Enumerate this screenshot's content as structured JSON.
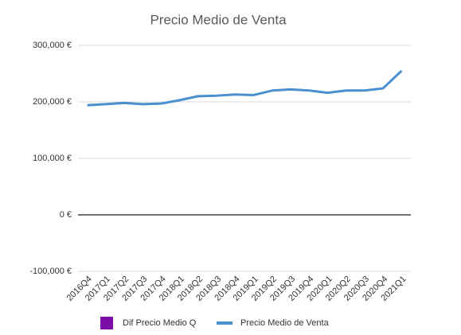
{
  "chart_data": {
    "type": "line",
    "title": "Precio Medio de Venta",
    "categories": [
      "2016Q4",
      "2017Q1",
      "2017Q2",
      "2017Q3",
      "2017Q4",
      "2018Q1",
      "2018Q2",
      "2018Q3",
      "2018Q4",
      "2019Q1",
      "2019Q2",
      "2019Q3",
      "2019Q4",
      "2020Q1",
      "2020Q2",
      "2020Q3",
      "2020Q4",
      "2021Q1"
    ],
    "series": [
      {
        "name": "Dif Precio Medio Q",
        "color": "#7a0fa8",
        "values": [
          null,
          null,
          null,
          null,
          null,
          null,
          null,
          null,
          null,
          null,
          null,
          null,
          null,
          null,
          null,
          null,
          null,
          null
        ]
      },
      {
        "name": "Precio Medio de Venta",
        "color": "#4a90d0",
        "values": [
          194000,
          196000,
          198000,
          196000,
          197000,
          203000,
          210000,
          211000,
          213000,
          212000,
          220000,
          222000,
          220000,
          216000,
          220000,
          220000,
          224000,
          255000
        ]
      }
    ],
    "ylim": [
      -100000,
      300000
    ],
    "yticks": [
      {
        "value": -100000,
        "label": "-100,000 €"
      },
      {
        "value": 0,
        "label": "0 €"
      },
      {
        "value": 100000,
        "label": "100,000 €"
      },
      {
        "value": 200000,
        "label": "200,000 €"
      },
      {
        "value": 300000,
        "label": "300,000 €"
      }
    ],
    "grid": true
  }
}
